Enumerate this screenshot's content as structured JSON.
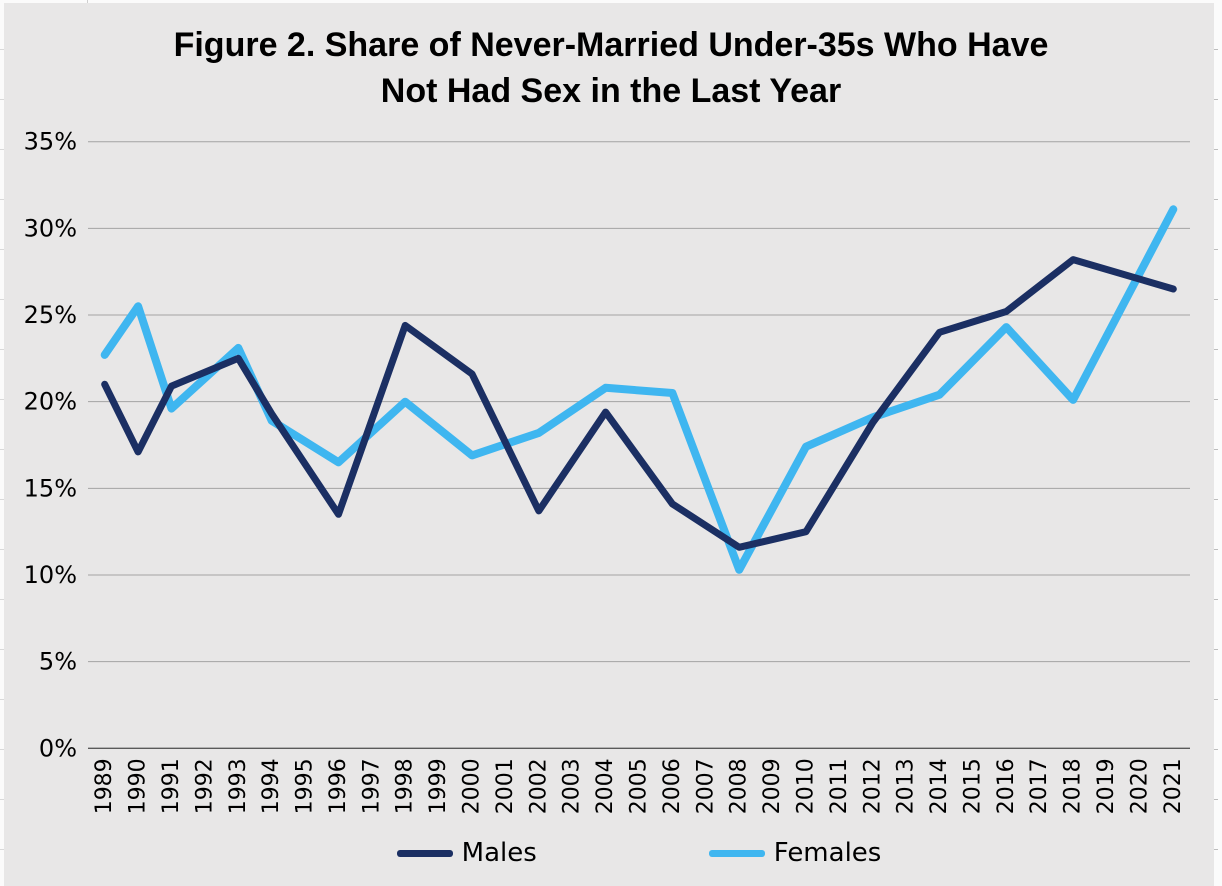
{
  "title": {
    "line1": "Figure 2. Share of Never-Married Under-35s Who Have",
    "line2": "Not Had Sex in the Last Year"
  },
  "colors": {
    "background": "#e8e7e7",
    "gridline": "#a3a3a3",
    "axis_line": "#5a5a5a",
    "tick_text": "#000000",
    "males": "#1b2f63",
    "females": "#3fb6f0"
  },
  "chart_data": {
    "type": "line",
    "title": "Figure 2. Share of Never-Married Under-35s Who Have Not Had Sex in the Last Year",
    "xlabel": "",
    "ylabel": "",
    "x_categories": [
      "1989",
      "1990",
      "1991",
      "1992",
      "1993",
      "1994",
      "1995",
      "1996",
      "1997",
      "1998",
      "1999",
      "2000",
      "2001",
      "2002",
      "2003",
      "2004",
      "2005",
      "2006",
      "2007",
      "2008",
      "2009",
      "2010",
      "2011",
      "2012",
      "2013",
      "2014",
      "2015",
      "2016",
      "2017",
      "2018",
      "2019",
      "2020",
      "2021"
    ],
    "y_ticks": [
      "0%",
      "5%",
      "10%",
      "15%",
      "20%",
      "25%",
      "30%",
      "35%"
    ],
    "ylim": [
      0,
      35
    ],
    "grid": "horizontal",
    "legend_position": "bottom",
    "x_label_rotation": -90,
    "series": [
      {
        "name": "Males",
        "color": "#1b2f63",
        "stroke_width": 7,
        "points": [
          {
            "year": 1989,
            "value": 21.0
          },
          {
            "year": 1990,
            "value": 17.1
          },
          {
            "year": 1991,
            "value": 20.9
          },
          {
            "year": 1993,
            "value": 22.5
          },
          {
            "year": 1994,
            "value": 19.3
          },
          {
            "year": 1996,
            "value": 13.5
          },
          {
            "year": 1998,
            "value": 24.4
          },
          {
            "year": 2000,
            "value": 21.6
          },
          {
            "year": 2002,
            "value": 13.7
          },
          {
            "year": 2004,
            "value": 19.4
          },
          {
            "year": 2006,
            "value": 14.1
          },
          {
            "year": 2008,
            "value": 11.6
          },
          {
            "year": 2010,
            "value": 12.5
          },
          {
            "year": 2012,
            "value": 18.8
          },
          {
            "year": 2014,
            "value": 24.0
          },
          {
            "year": 2016,
            "value": 25.2
          },
          {
            "year": 2018,
            "value": 28.2
          },
          {
            "year": 2021,
            "value": 26.5
          }
        ]
      },
      {
        "name": "Females",
        "color": "#3fb6f0",
        "stroke_width": 8,
        "points": [
          {
            "year": 1989,
            "value": 22.7
          },
          {
            "year": 1990,
            "value": 25.5
          },
          {
            "year": 1991,
            "value": 19.6
          },
          {
            "year": 1993,
            "value": 23.1
          },
          {
            "year": 1994,
            "value": 18.9
          },
          {
            "year": 1996,
            "value": 16.5
          },
          {
            "year": 1998,
            "value": 20.0
          },
          {
            "year": 2000,
            "value": 16.9
          },
          {
            "year": 2002,
            "value": 18.2
          },
          {
            "year": 2004,
            "value": 20.8
          },
          {
            "year": 2006,
            "value": 20.5
          },
          {
            "year": 2008,
            "value": 10.3
          },
          {
            "year": 2010,
            "value": 17.4
          },
          {
            "year": 2012,
            "value": 19.1
          },
          {
            "year": 2014,
            "value": 20.4
          },
          {
            "year": 2016,
            "value": 24.3
          },
          {
            "year": 2018,
            "value": 20.1
          },
          {
            "year": 2021,
            "value": 31.1
          }
        ]
      }
    ]
  }
}
